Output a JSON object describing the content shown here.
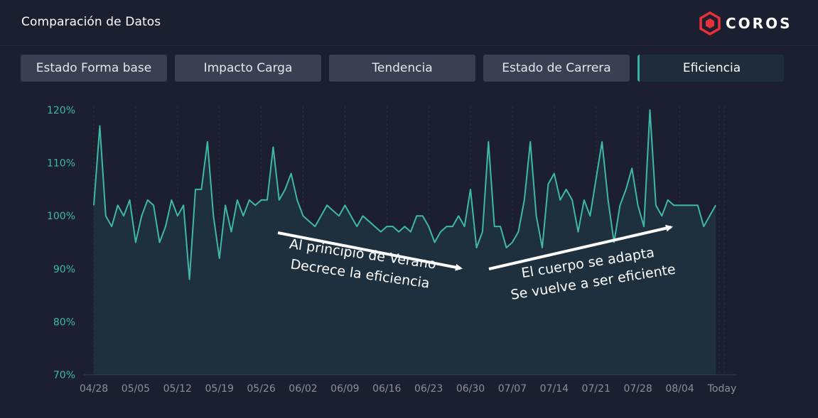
{
  "header": {
    "title": "Comparación de Datos",
    "brand": "COROS"
  },
  "tabs": [
    {
      "label": "Estado Forma base",
      "active": false
    },
    {
      "label": "Impacto Carga",
      "active": false
    },
    {
      "label": "Tendencia",
      "active": false
    },
    {
      "label": "Estado de Carrera",
      "active": false
    },
    {
      "label": "Eficiencia",
      "active": true
    }
  ],
  "colors": {
    "accent": "#3fb8a8",
    "background": "#1b1f2f",
    "tab": "#3a3f52",
    "tab_active": "#1f2c3b"
  },
  "chart_data": {
    "type": "area",
    "ylim": [
      70,
      120
    ],
    "ytick_labels": [
      "70%",
      "80%",
      "90%",
      "100%",
      "110%",
      "120%"
    ],
    "yticks": [
      70,
      80,
      90,
      100,
      110,
      120
    ],
    "xtick_labels": [
      "04/28",
      "05/05",
      "05/12",
      "05/19",
      "05/26",
      "06/02",
      "06/09",
      "06/16",
      "06/23",
      "06/30",
      "07/07",
      "07/14",
      "07/21",
      "07/28",
      "08/04",
      "Today"
    ],
    "grid": true,
    "series": [
      {
        "values": [
          102,
          117,
          100,
          98,
          102,
          100,
          103,
          95,
          100,
          103,
          102,
          95,
          98,
          103,
          100,
          102,
          88,
          105,
          105,
          114,
          100,
          92,
          102,
          97,
          103,
          100,
          103,
          102,
          103,
          103,
          113,
          103,
          105,
          108,
          103,
          100,
          99,
          98,
          100,
          102,
          101,
          100,
          102,
          100,
          98,
          100,
          99,
          98,
          97,
          98,
          98,
          97,
          98,
          97,
          100,
          100,
          98,
          95,
          97,
          98,
          98,
          100,
          98,
          105,
          94,
          97,
          114,
          98,
          98,
          94,
          95,
          97,
          103,
          114,
          100,
          94,
          106,
          108,
          103,
          105,
          103,
          97,
          103,
          100,
          107,
          114,
          103,
          95,
          102,
          105,
          109,
          102,
          98,
          120,
          102,
          100,
          103,
          102,
          102,
          102,
          102,
          102,
          98,
          100,
          102
        ]
      }
    ],
    "annotations": [
      {
        "lines": [
          "Al principio de Verano",
          "Decrece la eficiencia"
        ]
      },
      {
        "lines": [
          "El cuerpo se adapta",
          "Se vuelve a ser eficiente"
        ]
      }
    ]
  }
}
